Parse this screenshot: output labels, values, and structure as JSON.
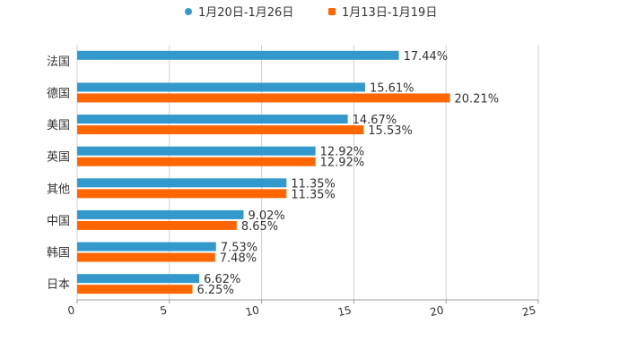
{
  "chart_data": {
    "type": "bar",
    "orientation": "horizontal",
    "title": "",
    "xlabel": "",
    "ylabel": "",
    "categories": [
      "法国",
      "德国",
      "美国",
      "英国",
      "其他",
      "中国",
      "韩国",
      "日本"
    ],
    "series": [
      {
        "name": "1月20日-1月26日",
        "color": "#3399cc",
        "values": [
          17.44,
          15.61,
          14.67,
          12.92,
          11.35,
          9.02,
          7.53,
          6.62
        ]
      },
      {
        "name": "1月13日-1月19日",
        "color": "#ff6600",
        "values": [
          null,
          20.21,
          15.53,
          12.92,
          11.35,
          8.65,
          7.48,
          6.25
        ]
      }
    ],
    "xlim": [
      0,
      25
    ],
    "xticks": [
      "0",
      "5",
      "10",
      "15",
      "20",
      "25"
    ],
    "value_suffix": "%",
    "grid": true,
    "legend_position": "top-center"
  }
}
